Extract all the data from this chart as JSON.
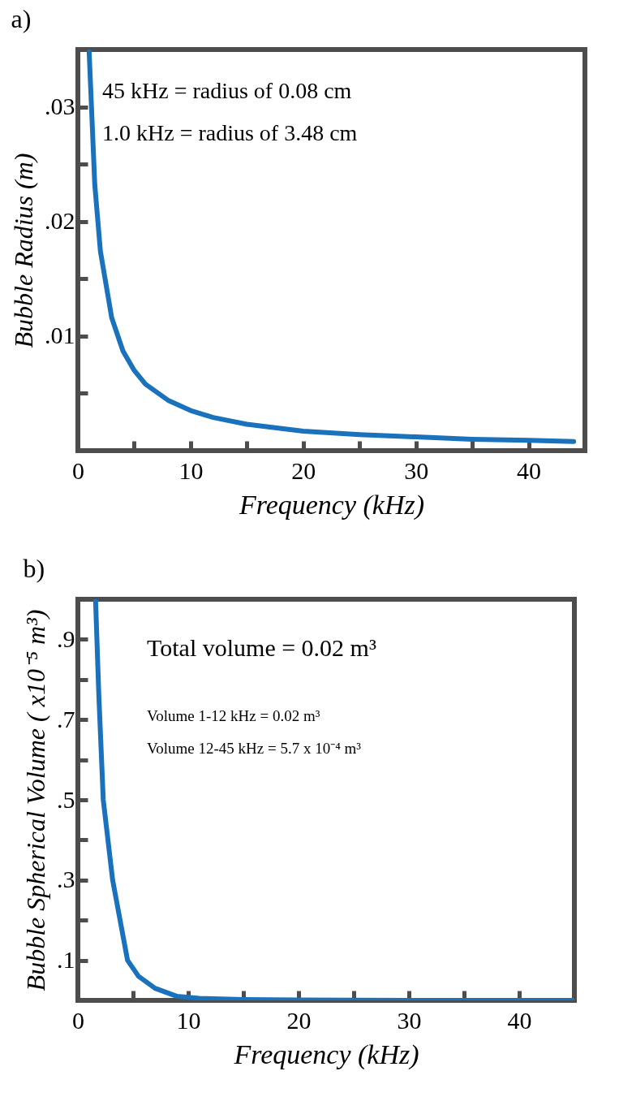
{
  "chart_data": [
    {
      "type": "line",
      "title": "a)",
      "xlabel": "Frequency (kHz)",
      "ylabel": "Bubble Radius (m)",
      "annotations": [
        "45 kHz =  radius of 0.08 cm",
        "1.0 kHz = radius of 3.48 cm"
      ],
      "x": [
        1,
        1.5,
        2,
        3,
        4,
        5,
        6,
        8,
        10,
        12,
        15,
        20,
        25,
        30,
        35,
        40,
        44
      ],
      "series": [
        {
          "color": "#1a72bd",
          "values": [
            0.0348,
            0.0232,
            0.0174,
            0.0116,
            0.0087,
            0.007,
            0.0058,
            0.0044,
            0.0035,
            0.0029,
            0.0023,
            0.0017,
            0.0014,
            0.0012,
            0.001,
            0.0009,
            0.0008
          ]
        }
      ],
      "xlim": [
        0,
        45
      ],
      "ylim": [
        0,
        0.035
      ],
      "xticks": [
        0,
        {
          "value": 5,
          "label": null
        },
        10,
        {
          "value": 15,
          "label": null
        },
        20,
        {
          "value": 25,
          "label": null
        },
        30,
        {
          "value": 35,
          "label": null
        },
        40
      ],
      "yticks": [
        {
          "value": 0.005,
          "label": null
        },
        {
          "value": 0.01,
          "label": ".01"
        },
        {
          "value": 0.015,
          "label": null
        },
        {
          "value": 0.02,
          "label": ".02"
        },
        {
          "value": 0.025,
          "label": null
        },
        {
          "value": 0.03,
          "label": ".03"
        }
      ],
      "grid": false,
      "line_style": "solid"
    },
    {
      "type": "line",
      "title": "b)",
      "xlabel": "Frequency (kHz)",
      "ylabel": "Bubble Spherical Volume ( x10⁻⁵ m³)",
      "annotations": [
        "Total volume = 0.02 m³",
        "Volume 1-12 kHz = 0.02 m³",
        "Volume 12-45 kHz = 5.7 x 10⁻⁴ m³"
      ],
      "x": [
        1.6,
        1.9,
        2.3,
        3.15,
        4.5,
        5.5,
        7,
        9,
        11,
        15,
        20,
        30,
        45
      ],
      "series": [
        {
          "color": "#1a72bd",
          "values": [
            1.0,
            0.76,
            0.5,
            0.3,
            0.1,
            0.06,
            0.03,
            0.01,
            0.005,
            0.002,
            0.001,
            0,
            0
          ]
        }
      ],
      "xlim": [
        0,
        45
      ],
      "ylim": [
        0,
        1
      ],
      "xticks": [
        0,
        {
          "value": 5,
          "label": null
        },
        10,
        {
          "value": 15,
          "label": null
        },
        20,
        {
          "value": 25,
          "label": null
        },
        30,
        {
          "value": 35,
          "label": null
        },
        40
      ],
      "yticks": [
        {
          "value": 0.1,
          "label": ".1"
        },
        {
          "value": 0.2,
          "label": null
        },
        {
          "value": 0.3,
          "label": ".3"
        },
        {
          "value": 0.4,
          "label": null
        },
        {
          "value": 0.5,
          "label": ".5"
        },
        {
          "value": 0.6,
          "label": null
        },
        {
          "value": 0.7,
          "label": ".7"
        },
        {
          "value": 0.8,
          "label": null
        },
        {
          "value": 0.9,
          "label": ".9"
        }
      ],
      "grid": false,
      "line_style": "solid"
    }
  ]
}
